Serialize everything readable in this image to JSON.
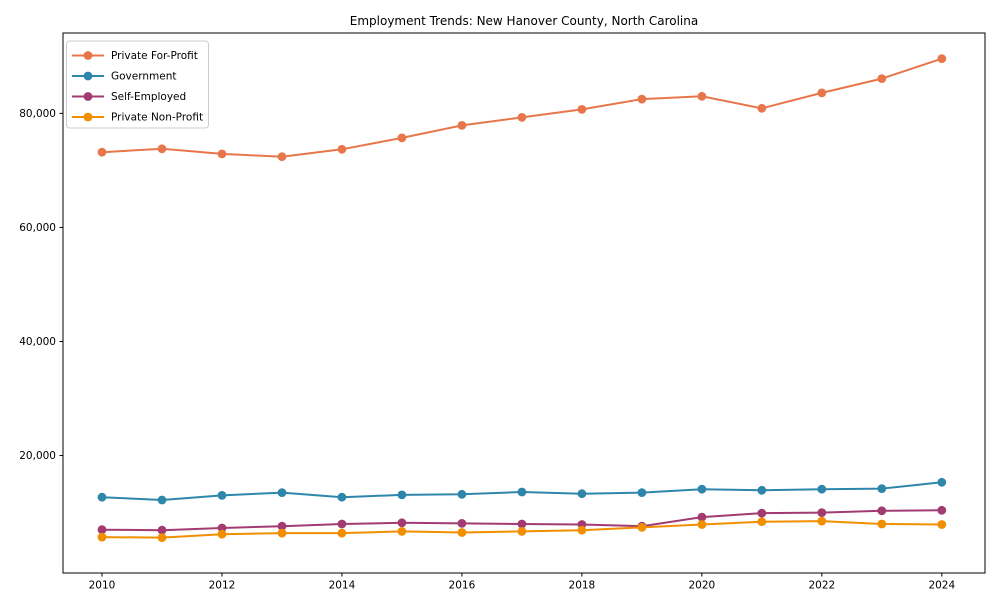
{
  "chart_data": {
    "type": "line",
    "title": "Employment Trends: New Hanover County, North Carolina",
    "xlabel": "",
    "ylabel": "",
    "x": [
      2010,
      2011,
      2012,
      2013,
      2014,
      2015,
      2016,
      2017,
      2018,
      2019,
      2020,
      2021,
      2022,
      2023,
      2024
    ],
    "series": [
      {
        "name": "Private For-Profit",
        "color": "#E8764B",
        "values": [
          73200,
          73800,
          72900,
          72400,
          73700,
          75700,
          77900,
          79300,
          80700,
          82500,
          83000,
          80900,
          83600,
          86100,
          89600
        ]
      },
      {
        "name": "Government",
        "color": "#2E86AB",
        "values": [
          12700,
          12200,
          13000,
          13500,
          12700,
          13100,
          13200,
          13600,
          13300,
          13500,
          14100,
          13900,
          14100,
          14200,
          15300
        ]
      },
      {
        "name": "Self-Employed",
        "color": "#A23B72",
        "values": [
          7000,
          6900,
          7300,
          7600,
          8000,
          8200,
          8100,
          8000,
          7900,
          7600,
          9200,
          9900,
          10000,
          10300,
          10400
        ]
      },
      {
        "name": "Private Non-Profit",
        "color": "#F18F01",
        "values": [
          5700,
          5600,
          6200,
          6400,
          6400,
          6700,
          6500,
          6700,
          6900,
          7400,
          7900,
          8400,
          8500,
          8000,
          7900
        ]
      }
    ],
    "x_ticks": [
      {
        "value": 2010,
        "label": "2010"
      },
      {
        "value": 2012,
        "label": "2012"
      },
      {
        "value": 2014,
        "label": "2014"
      },
      {
        "value": 2016,
        "label": "2016"
      },
      {
        "value": 2018,
        "label": "2018"
      },
      {
        "value": 2020,
        "label": "2020"
      },
      {
        "value": 2022,
        "label": "2022"
      },
      {
        "value": 2024,
        "label": "2024"
      }
    ],
    "y_ticks": [
      {
        "value": 20000,
        "label": "20,000"
      },
      {
        "value": 40000,
        "label": "40,000"
      },
      {
        "value": 60000,
        "label": "60,000"
      },
      {
        "value": 80000,
        "label": "80,000"
      }
    ],
    "xlim": [
      2009.35,
      2024.72
    ],
    "ylim": [
      -600,
      94100
    ],
    "grid": false,
    "legend_position": "upper-left"
  }
}
